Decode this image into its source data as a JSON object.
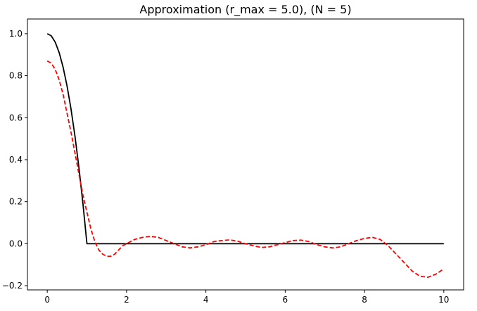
{
  "chart_data": {
    "type": "line",
    "title": "Approximation (r_max = 5.0), (N = 5)",
    "xlabel": "",
    "ylabel": "",
    "xlim": [
      -0.5,
      10.5
    ],
    "ylim": [
      -0.22,
      1.07
    ],
    "x_ticks": [
      0,
      2,
      4,
      6,
      8,
      10
    ],
    "y_ticks": [
      -0.2,
      0.0,
      0.2,
      0.4,
      0.6,
      0.8,
      1.0
    ],
    "x_tick_labels": [
      "0",
      "2",
      "4",
      "6",
      "8",
      "10"
    ],
    "y_tick_labels": [
      "−0.2",
      "0.0",
      "0.2",
      "0.4",
      "0.6",
      "0.8",
      "1.0"
    ],
    "grid": false,
    "legend": "none",
    "series": [
      {
        "color": "#000000",
        "style": "solid",
        "x": [
          0.0,
          0.1,
          0.2,
          0.3,
          0.4,
          0.5,
          0.6,
          0.7,
          0.8,
          0.9,
          1.0,
          1.1,
          2.0,
          3.0,
          4.0,
          5.0,
          6.0,
          7.0,
          8.0,
          9.0,
          10.0
        ],
        "y": [
          1.0,
          0.99,
          0.96,
          0.91,
          0.84,
          0.75,
          0.64,
          0.51,
          0.36,
          0.19,
          0.0,
          0.0,
          0.0,
          0.0,
          0.0,
          0.0,
          0.0,
          0.0,
          0.0,
          0.0,
          0.0
        ]
      },
      {
        "color": "#ff0000",
        "style": "dashed",
        "x": [
          0.0,
          0.1,
          0.2,
          0.3,
          0.4,
          0.5,
          0.6,
          0.7,
          0.8,
          0.9,
          1.0,
          1.1,
          1.2,
          1.3,
          1.4,
          1.5,
          1.6,
          1.7,
          1.8,
          1.9,
          2.0,
          2.2,
          2.4,
          2.6,
          2.8,
          3.0,
          3.2,
          3.4,
          3.6,
          3.8,
          4.0,
          4.2,
          4.4,
          4.6,
          4.8,
          5.0,
          5.2,
          5.4,
          5.6,
          5.8,
          6.0,
          6.2,
          6.4,
          6.6,
          6.8,
          7.0,
          7.2,
          7.4,
          7.6,
          7.8,
          8.0,
          8.2,
          8.4,
          8.6,
          8.8,
          9.0,
          9.2,
          9.4,
          9.6,
          9.8,
          10.0
        ],
        "y": [
          0.87,
          0.86,
          0.83,
          0.78,
          0.71,
          0.62,
          0.53,
          0.43,
          0.33,
          0.23,
          0.15,
          0.07,
          0.01,
          -0.03,
          -0.05,
          -0.06,
          -0.06,
          -0.05,
          -0.03,
          -0.01,
          0.0,
          0.02,
          0.03,
          0.035,
          0.03,
          0.015,
          0.0,
          -0.015,
          -0.02,
          -0.015,
          -0.005,
          0.01,
          0.015,
          0.018,
          0.012,
          0.0,
          -0.01,
          -0.018,
          -0.015,
          -0.005,
          0.005,
          0.015,
          0.017,
          0.01,
          -0.005,
          -0.015,
          -0.02,
          -0.015,
          0.0,
          0.015,
          0.025,
          0.03,
          0.02,
          -0.01,
          -0.05,
          -0.09,
          -0.13,
          -0.155,
          -0.16,
          -0.145,
          -0.12
        ]
      }
    ]
  }
}
